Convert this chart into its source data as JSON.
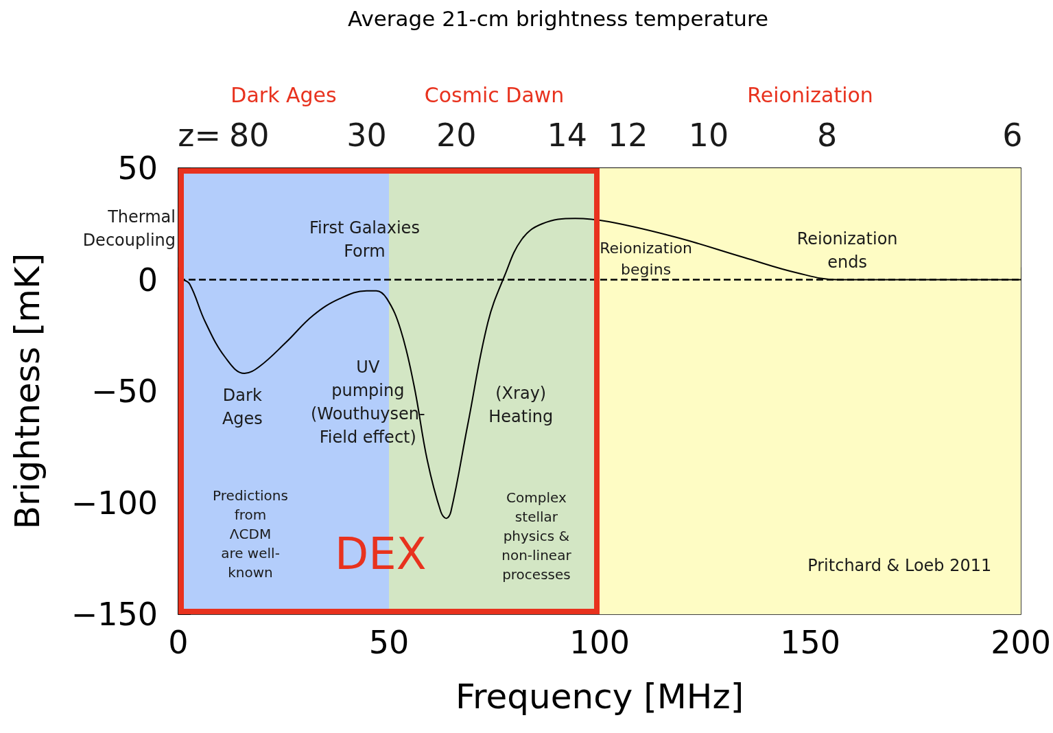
{
  "chart_data": {
    "type": "line",
    "title": "Average 21-cm brightness temperature",
    "xlabel": "Frequency [MHz]",
    "ylabel": "Brightness [mK]",
    "xlim": [
      0,
      200
    ],
    "xticks": [
      0,
      50,
      100,
      150,
      200
    ],
    "ylim": [
      -150,
      50
    ],
    "yticks": [
      -150,
      -100,
      -50,
      0,
      50
    ],
    "x": [
      1,
      2.7,
      6.4,
      11.2,
      15.7,
      19.2,
      25.6,
      32,
      38.3,
      44.7,
      47,
      49.5,
      52.7,
      55.9,
      59.1,
      62.3,
      63.6,
      64.7,
      68.7,
      73.5,
      77.5,
      81.5,
      86.3,
      94.2,
      102.2,
      118.2,
      134.2,
      147,
      156.5,
      166,
      200
    ],
    "series": [
      {
        "color": "#000000",
        "values": [
          0,
          -2,
          -19,
          -35,
          -42,
          -39,
          -28,
          -16,
          -8.5,
          -5,
          -5,
          -8.5,
          -22,
          -47,
          -81,
          -104,
          -107,
          -104,
          -65,
          -19,
          2,
          18,
          25,
          27.5,
          26,
          19,
          10,
          3,
          0,
          0,
          0
        ]
      }
    ],
    "bands": [
      {
        "axis": "x",
        "from": 0,
        "to": 50,
        "label": "Dark Ages",
        "color": "#b3cdfb"
      },
      {
        "axis": "x",
        "from": 50,
        "to": 100,
        "label": "Cosmic Dawn",
        "color": "#d3e6c4"
      },
      {
        "axis": "x",
        "from": 100,
        "to": 200,
        "label": "Reionization",
        "color": "#fefcc4"
      }
    ],
    "ref_lines": [
      {
        "axis": "y",
        "value": 0,
        "label": null,
        "color": "#000000",
        "line_style": "dashed"
      }
    ],
    "annotations": [
      "Thermal\nDecoupling",
      "First Galaxies\nForm",
      "Reionization\nbegins",
      "Reionization\nends",
      "Dark\nAges",
      "UV\npumping\n(Wouthuysen-\nField effect)",
      "(Xray)\nHeating",
      "Predictions\nfrom\nΛCDM\nare well-\nknown",
      "Complex\nstellar\nphysics &\nnon-linear\nprocesses",
      "Pritchard & Loeb 2011",
      "DEX",
      "z=",
      "80",
      "30",
      "20",
      "14",
      "12",
      "10",
      "8",
      "6"
    ],
    "grid": false,
    "marker": "none",
    "line_style": "solid"
  }
}
